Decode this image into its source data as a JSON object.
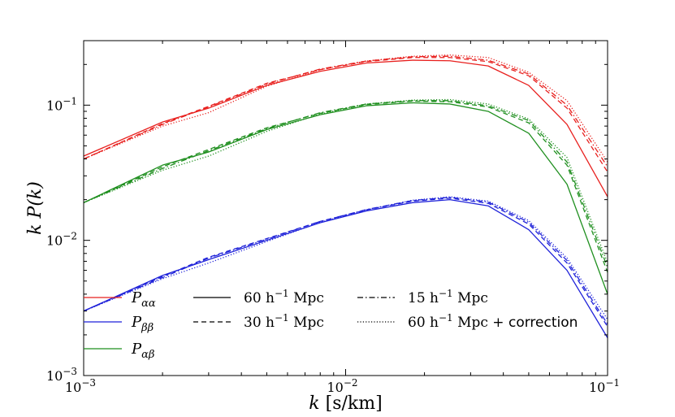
{
  "chart_data": {
    "type": "line",
    "xscale": "log",
    "yscale": "log",
    "xlim": [
      0.001,
      0.1
    ],
    "ylim": [
      0.001,
      0.3
    ],
    "xlabel": "k [s/km]",
    "ylabel": "k P(k)",
    "x_ticks": [
      0.001,
      0.01,
      0.1
    ],
    "x_tick_labels": [
      "10^-3",
      "10^-2",
      "10^-1"
    ],
    "y_ticks": [
      0.001,
      0.01,
      0.1
    ],
    "y_tick_labels": [
      "10^-3",
      "10^-2",
      "10^-1"
    ],
    "colors": {
      "P_aa": "#e8201e",
      "P_bb": "#1f22d9",
      "P_ab": "#1f8f1f"
    },
    "legend": {
      "colors": [
        {
          "key": "P_aa",
          "label": "P_αα"
        },
        {
          "key": "P_bb",
          "label": "P_ββ"
        },
        {
          "key": "P_ab",
          "label": "P_αβ"
        }
      ],
      "styles": [
        {
          "key": "solid",
          "label": "60 h^-1 Mpc"
        },
        {
          "key": "dashed",
          "label": "30 h^-1 Mpc"
        },
        {
          "key": "dashdot",
          "label": "15 h^-1 Mpc"
        },
        {
          "key": "dotted",
          "label": "60 h^-1 Mpc + correction"
        }
      ]
    },
    "x": [
      0.001,
      0.002,
      0.003,
      0.005,
      0.008,
      0.012,
      0.018,
      0.025,
      0.035,
      0.05,
      0.07,
      0.1
    ],
    "series": [
      {
        "name": "P_aa 60",
        "color_key": "P_aa",
        "style": "solid",
        "values": [
          0.042,
          0.075,
          0.095,
          0.14,
          0.178,
          0.205,
          0.215,
          0.213,
          0.195,
          0.14,
          0.072,
          0.021
        ]
      },
      {
        "name": "P_aa 30",
        "color_key": "P_aa",
        "style": "dashed",
        "values": [
          0.04,
          0.073,
          0.098,
          0.145,
          0.183,
          0.21,
          0.225,
          0.225,
          0.21,
          0.165,
          0.095,
          0.032
        ]
      },
      {
        "name": "P_aa 15",
        "color_key": "P_aa",
        "style": "dashdot",
        "values": [
          0.04,
          0.072,
          0.097,
          0.143,
          0.185,
          0.212,
          0.228,
          0.23,
          0.215,
          0.17,
          0.1,
          0.035
        ]
      },
      {
        "name": "P_aa corr",
        "color_key": "P_aa",
        "style": "dotted",
        "values": [
          0.04,
          0.07,
          0.088,
          0.138,
          0.183,
          0.212,
          0.23,
          0.235,
          0.225,
          0.175,
          0.108,
          0.038
        ]
      },
      {
        "name": "P_ab 60",
        "color_key": "P_ab",
        "style": "solid",
        "values": [
          0.019,
          0.036,
          0.045,
          0.066,
          0.085,
          0.099,
          0.104,
          0.102,
          0.09,
          0.062,
          0.026,
          0.004
        ]
      },
      {
        "name": "P_ab 30",
        "color_key": "P_ab",
        "style": "dashed",
        "values": [
          0.019,
          0.035,
          0.047,
          0.068,
          0.087,
          0.101,
          0.107,
          0.106,
          0.097,
          0.074,
          0.036,
          0.0058
        ]
      },
      {
        "name": "P_ab 15",
        "color_key": "P_ab",
        "style": "dashdot",
        "values": [
          0.019,
          0.034,
          0.046,
          0.067,
          0.088,
          0.102,
          0.108,
          0.108,
          0.099,
          0.077,
          0.038,
          0.0063
        ]
      },
      {
        "name": "P_ab corr",
        "color_key": "P_ab",
        "style": "dotted",
        "values": [
          0.019,
          0.033,
          0.042,
          0.064,
          0.086,
          0.102,
          0.109,
          0.11,
          0.102,
          0.079,
          0.041,
          0.0068
        ]
      },
      {
        "name": "P_bb 60",
        "color_key": "P_bb",
        "style": "solid",
        "values": [
          0.003,
          0.0055,
          0.0072,
          0.01,
          0.0135,
          0.0165,
          0.019,
          0.02,
          0.018,
          0.012,
          0.006,
          0.0019
        ]
      },
      {
        "name": "P_bb 30",
        "color_key": "P_bb",
        "style": "dashed",
        "values": [
          0.003,
          0.0054,
          0.0075,
          0.0103,
          0.0138,
          0.0168,
          0.0195,
          0.0205,
          0.0188,
          0.0132,
          0.0068,
          0.0023
        ]
      },
      {
        "name": "P_bb 15",
        "color_key": "P_bb",
        "style": "dashdot",
        "values": [
          0.003,
          0.0053,
          0.0074,
          0.0102,
          0.0138,
          0.0169,
          0.0197,
          0.0208,
          0.0192,
          0.0136,
          0.0071,
          0.0024
        ]
      },
      {
        "name": "P_bb corr",
        "color_key": "P_bb",
        "style": "dotted",
        "values": [
          0.003,
          0.0052,
          0.0068,
          0.0098,
          0.0136,
          0.0168,
          0.0198,
          0.021,
          0.0195,
          0.014,
          0.0074,
          0.0026
        ]
      }
    ]
  }
}
